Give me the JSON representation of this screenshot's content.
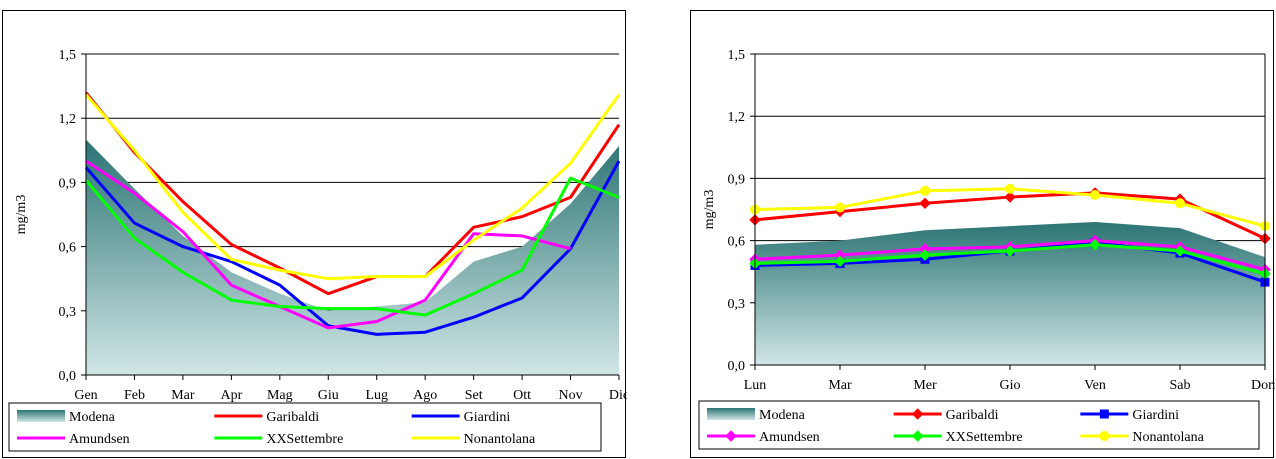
{
  "chart_data": [
    {
      "type": "line",
      "ylabel": "mg/m3",
      "ylim": [
        0,
        1.5
      ],
      "yticks": [
        "0,0",
        "0,3",
        "0,6",
        "0,9",
        "1,2",
        "1,5"
      ],
      "grid": "horizontal",
      "legend_position": "bottom",
      "categories": [
        "Gen",
        "Feb",
        "Mar",
        "Apr",
        "Mag",
        "Giu",
        "Lug",
        "Ago",
        "Set",
        "Ott",
        "Nov",
        "Dic"
      ],
      "series": [
        {
          "name": "Modena",
          "kind": "area",
          "color": "#5f9a9e",
          "values": [
            1.1,
            0.87,
            0.65,
            0.48,
            0.38,
            0.3,
            0.32,
            0.34,
            0.53,
            0.6,
            0.8,
            1.07
          ]
        },
        {
          "name": "Garibaldi",
          "kind": "line",
          "color": "#ff0000",
          "values": [
            1.32,
            1.04,
            0.81,
            0.61,
            0.5,
            0.38,
            0.46,
            0.46,
            0.69,
            0.74,
            0.83,
            1.17
          ]
        },
        {
          "name": "Giardini",
          "kind": "line",
          "color": "#0000ff",
          "values": [
            0.97,
            0.71,
            0.6,
            0.53,
            0.42,
            0.23,
            0.19,
            0.2,
            0.27,
            0.36,
            0.59,
            1.0
          ]
        },
        {
          "name": "Amundsen",
          "kind": "line",
          "color": "#ff00ff",
          "values": [
            1.0,
            0.85,
            0.67,
            0.42,
            0.32,
            0.22,
            0.25,
            0.35,
            0.66,
            0.65,
            0.59,
            null
          ]
        },
        {
          "name": "XXSettembre",
          "kind": "line",
          "color": "#00ff00",
          "values": [
            0.91,
            0.64,
            0.48,
            0.35,
            0.32,
            0.31,
            0.31,
            0.28,
            0.38,
            0.49,
            0.92,
            0.83
          ]
        },
        {
          "name": "Nonantolana",
          "kind": "line",
          "color": "#ffff00",
          "values": [
            1.31,
            1.05,
            0.76,
            0.54,
            0.49,
            0.45,
            0.46,
            0.46,
            0.63,
            0.78,
            0.99,
            1.31
          ]
        }
      ]
    },
    {
      "type": "line",
      "ylabel": "mg/m3",
      "ylim": [
        0,
        1.5
      ],
      "yticks": [
        "0,0",
        "0,3",
        "0,6",
        "0,9",
        "1,2",
        "1,5"
      ],
      "grid": "horizontal",
      "legend_position": "bottom",
      "categories": [
        "Lun",
        "Mar",
        "Mer",
        "Gio",
        "Ven",
        "Sab",
        "Dom"
      ],
      "series": [
        {
          "name": "Modena",
          "kind": "area",
          "color": "#5f9a9e",
          "values": [
            0.58,
            0.6,
            0.65,
            0.67,
            0.69,
            0.66,
            0.52
          ]
        },
        {
          "name": "Garibaldi",
          "kind": "line",
          "marker": "diamond",
          "color": "#ff0000",
          "values": [
            0.7,
            0.74,
            0.78,
            0.81,
            0.83,
            0.8,
            0.61
          ]
        },
        {
          "name": "Giardini",
          "kind": "line",
          "marker": "square",
          "color": "#0000ff",
          "values": [
            0.48,
            0.49,
            0.51,
            0.55,
            0.59,
            0.54,
            0.4
          ]
        },
        {
          "name": "Amundsen",
          "kind": "line",
          "marker": "diamond",
          "color": "#ff00ff",
          "values": [
            0.51,
            0.53,
            0.56,
            0.57,
            0.6,
            0.57,
            0.46
          ]
        },
        {
          "name": "XXSettembre",
          "kind": "line",
          "marker": "diamond",
          "color": "#00ff00",
          "values": [
            0.49,
            0.5,
            0.53,
            0.55,
            0.58,
            0.55,
            0.44
          ]
        },
        {
          "name": "Nonantolana",
          "kind": "line",
          "marker": "circle",
          "color": "#ffff00",
          "values": [
            0.75,
            0.76,
            0.84,
            0.85,
            0.82,
            0.78,
            0.67
          ]
        }
      ]
    }
  ]
}
